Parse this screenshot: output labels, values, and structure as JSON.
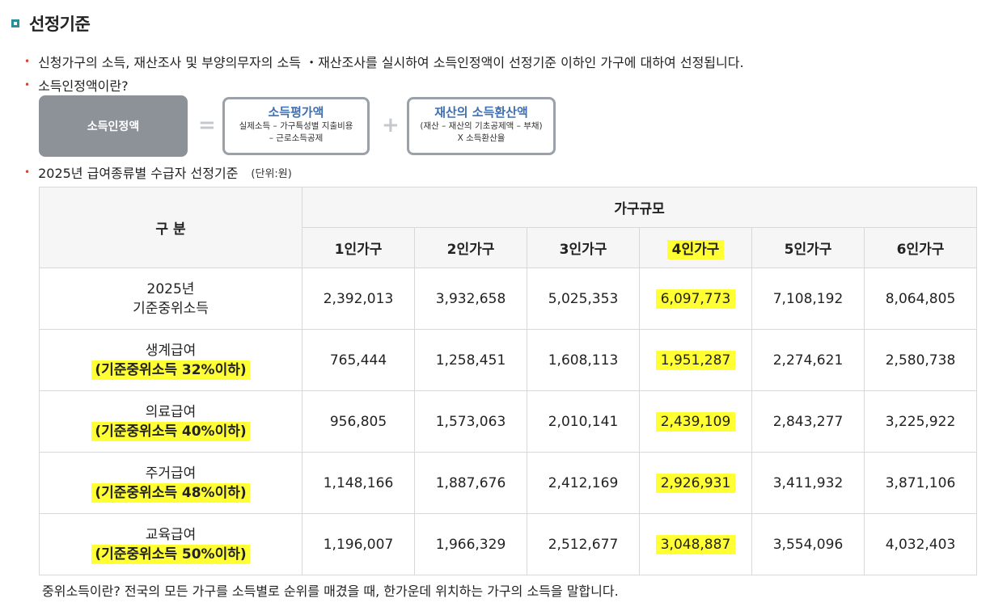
{
  "heading": "선정기준",
  "bullets": {
    "b1": "신청가구의 소득, 재산조사 및 부양의무자의 소득 ・재산조사를 실시하여 소득인정액이 선정기준 이하인 가구에 대하여 선정됩니다.",
    "b2": "소득인정액이란?",
    "b3": "2025년 급여종류별 수급자 선정기준",
    "b3_unit": "(단위:원)"
  },
  "diagram": {
    "income": "소득인정액",
    "equals": "=",
    "plus": "+",
    "box1_title": "소득평가액",
    "box1_line1": "실제소득 – 가구특성별 지출비용",
    "box1_line2": "– 근로소득공제",
    "box2_title": "재산의 소득환산액",
    "box2_line1": "(재산 – 재산의 기초공제액 – 부채)",
    "box2_line2": "X 소득환산율"
  },
  "table": {
    "header_category": "구 분",
    "header_group": "가구규모",
    "columns": [
      "1인가구",
      "2인가구",
      "3인가구",
      "4인가구",
      "5인가구",
      "6인가구"
    ],
    "rows": [
      {
        "label1": "2025년",
        "label2": "기준중위소득",
        "values": [
          "2,392,013",
          "3,932,658",
          "5,025,353",
          "6,097,773",
          "7,108,192",
          "8,064,805"
        ]
      },
      {
        "label1": "생계급여",
        "label2": "(기준중위소득 32%이하)",
        "values": [
          "765,444",
          "1,258,451",
          "1,608,113",
          "1,951,287",
          "2,274,621",
          "2,580,738"
        ]
      },
      {
        "label1": "의료급여",
        "label2": "(기준중위소득 40%이하)",
        "values": [
          "956,805",
          "1,573,063",
          "2,010,141",
          "2,439,109",
          "2,843,277",
          "3,225,922"
        ]
      },
      {
        "label1": "주거급여",
        "label2": "(기준중위소득 48%이하)",
        "values": [
          "1,148,166",
          "1,887,676",
          "2,412,169",
          "2,926,931",
          "3,411,932",
          "3,871,106"
        ]
      },
      {
        "label1": "교육급여",
        "label2": "(기준중위소득 50%이하)",
        "values": [
          "1,196,007",
          "1,966,329",
          "2,512,677",
          "3,048,887",
          "3,554,096",
          "4,032,403"
        ]
      }
    ]
  },
  "footnote": "중위소득이란? 전국의 모든 가구를 소득별로 순위를 매겼을 때, 한가운데 위치하는 가구의 소득을 말합니다.",
  "colors": {
    "accent": "#2a8f9c",
    "bullet": "#d8443a",
    "highlight": "#ffff33",
    "box_title": "#3f6fb0"
  }
}
